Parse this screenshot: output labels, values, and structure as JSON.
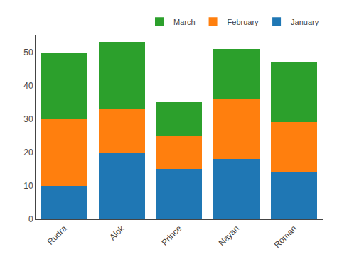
{
  "chart_data": {
    "type": "bar",
    "stacked": true,
    "categories": [
      "Rudra",
      "Alok",
      "Prince",
      "Nayan",
      "Roman"
    ],
    "series": [
      {
        "name": "January",
        "color": "#1f77b4",
        "values": [
          10,
          20,
          15,
          18,
          14
        ]
      },
      {
        "name": "February",
        "color": "#ff7f0e",
        "values": [
          20,
          13,
          10,
          18,
          15
        ]
      },
      {
        "name": "March",
        "color": "#2ca02c",
        "values": [
          20,
          20,
          10,
          15,
          18
        ]
      }
    ],
    "ylim": [
      0,
      55
    ],
    "yticks": [
      0,
      10,
      20,
      30,
      40,
      50
    ],
    "grid": false,
    "legend": "upper right"
  }
}
